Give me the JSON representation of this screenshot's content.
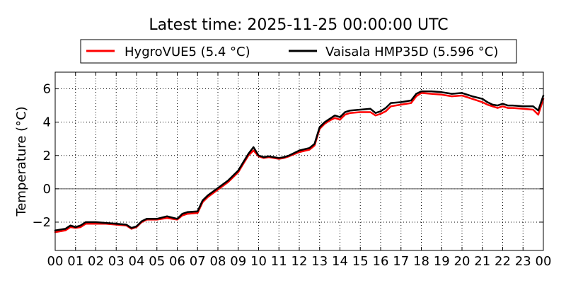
{
  "chart_data": {
    "type": "line",
    "title": "Latest time: 2025-11-25 00:00:00 UTC",
    "xlabel": "",
    "ylabel": "Temperature (°C)",
    "xlim": [
      0,
      24
    ],
    "ylim": [
      -3.7,
      7
    ],
    "x_ticks": [
      0,
      1,
      2,
      3,
      4,
      5,
      6,
      7,
      8,
      9,
      10,
      11,
      12,
      13,
      14,
      15,
      16,
      17,
      18,
      19,
      20,
      21,
      22,
      23,
      24
    ],
    "x_tick_labels": [
      "00",
      "01",
      "02",
      "03",
      "04",
      "05",
      "06",
      "07",
      "08",
      "09",
      "10",
      "11",
      "12",
      "13",
      "14",
      "15",
      "16",
      "17",
      "18",
      "19",
      "20",
      "21",
      "22",
      "23",
      "00"
    ],
    "y_ticks": [
      -2,
      0,
      2,
      4,
      6
    ],
    "y_tick_labels": [
      "−2",
      "0",
      "2",
      "4",
      "6"
    ],
    "grid": true,
    "zero_line": true,
    "legend_position": "above-plot",
    "series": [
      {
        "name": "HygroVUE5 (5.4 °C)",
        "color": "#ff0000",
        "x": [
          0,
          0.5,
          0.75,
          1,
          1.25,
          1.5,
          2,
          2.5,
          3,
          3.5,
          3.75,
          4,
          4.25,
          4.5,
          5,
          5.5,
          6,
          6.25,
          6.5,
          7,
          7.25,
          7.5,
          8,
          8.5,
          9,
          9.25,
          9.5,
          9.75,
          10,
          10.25,
          10.5,
          11,
          11.25,
          11.5,
          12,
          12.5,
          12.75,
          13,
          13.25,
          13.5,
          13.75,
          14,
          14.25,
          14.5,
          15,
          15.5,
          15.75,
          16,
          16.25,
          16.5,
          17,
          17.5,
          17.75,
          18,
          18.5,
          19,
          19.5,
          20,
          20.5,
          21,
          21.25,
          21.5,
          21.75,
          22,
          22.25,
          22.5,
          23,
          23.5,
          23.75,
          24
        ],
        "y": [
          -2.6,
          -2.5,
          -2.3,
          -2.35,
          -2.3,
          -2.1,
          -2.1,
          -2.1,
          -2.15,
          -2.2,
          -2.4,
          -2.3,
          -2.0,
          -1.85,
          -1.85,
          -1.75,
          -1.85,
          -1.6,
          -1.5,
          -1.45,
          -0.8,
          -0.5,
          -0.05,
          0.4,
          1.0,
          1.5,
          2.0,
          2.3,
          1.95,
          1.85,
          1.9,
          1.8,
          1.85,
          1.95,
          2.2,
          2.35,
          2.6,
          3.6,
          3.9,
          4.1,
          4.25,
          4.15,
          4.45,
          4.55,
          4.6,
          4.6,
          4.4,
          4.5,
          4.65,
          4.95,
          5.05,
          5.15,
          5.55,
          5.75,
          5.7,
          5.65,
          5.55,
          5.6,
          5.4,
          5.2,
          5.05,
          4.95,
          4.85,
          4.95,
          4.85,
          4.85,
          4.8,
          4.75,
          4.45,
          5.4
        ]
      },
      {
        "name": "Vaisala HMP35D (5.596 °C)",
        "color": "#000000",
        "x": [
          0,
          0.5,
          0.75,
          1,
          1.25,
          1.5,
          2,
          2.5,
          3,
          3.5,
          3.75,
          4,
          4.25,
          4.5,
          5,
          5.5,
          6,
          6.25,
          6.5,
          7,
          7.25,
          7.5,
          8,
          8.5,
          9,
          9.25,
          9.5,
          9.75,
          10,
          10.25,
          10.5,
          11,
          11.25,
          11.5,
          12,
          12.5,
          12.75,
          13,
          13.25,
          13.5,
          13.75,
          14,
          14.25,
          14.5,
          15,
          15.5,
          15.75,
          16,
          16.25,
          16.5,
          17,
          17.5,
          17.75,
          18,
          18.5,
          19,
          19.5,
          20,
          20.5,
          21,
          21.25,
          21.5,
          21.75,
          22,
          22.25,
          22.5,
          23,
          23.5,
          23.75,
          24
        ],
        "y": [
          -2.5,
          -2.4,
          -2.2,
          -2.3,
          -2.2,
          -2.0,
          -2.0,
          -2.05,
          -2.1,
          -2.15,
          -2.35,
          -2.25,
          -1.95,
          -1.8,
          -1.8,
          -1.65,
          -1.8,
          -1.5,
          -1.4,
          -1.35,
          -0.7,
          -0.4,
          0.05,
          0.5,
          1.1,
          1.6,
          2.1,
          2.5,
          2.0,
          1.9,
          1.95,
          1.85,
          1.9,
          2.0,
          2.3,
          2.45,
          2.7,
          3.7,
          4.0,
          4.2,
          4.4,
          4.3,
          4.6,
          4.7,
          4.75,
          4.8,
          4.55,
          4.65,
          4.85,
          5.15,
          5.2,
          5.3,
          5.7,
          5.85,
          5.85,
          5.8,
          5.7,
          5.75,
          5.55,
          5.4,
          5.2,
          5.05,
          5.0,
          5.1,
          5.0,
          5.0,
          4.95,
          4.95,
          4.7,
          5.6
        ]
      }
    ]
  }
}
